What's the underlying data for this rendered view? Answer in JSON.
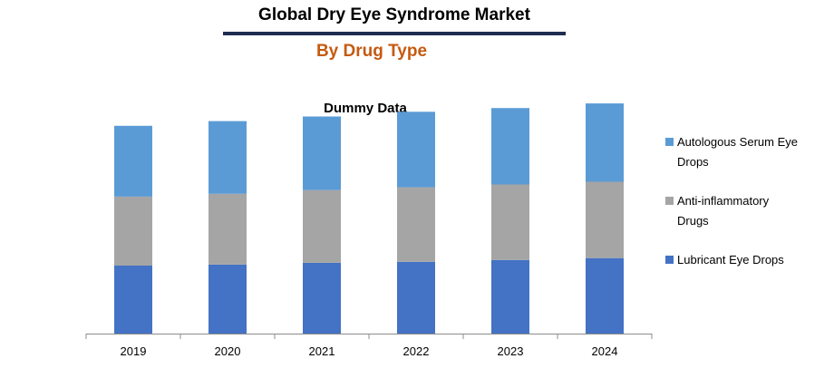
{
  "header": {
    "title": "Global Dry Eye Syndrome Market",
    "subtitle": "By Drug Type"
  },
  "chart_data": {
    "type": "bar",
    "stacked": true,
    "title": "Dummy Data",
    "xlabel": "",
    "ylabel": "",
    "categories": [
      "2019",
      "2020",
      "2021",
      "2022",
      "2023",
      "2024"
    ],
    "series": [
      {
        "name": "Lubricant Eye Drops",
        "color": "#4472c4",
        "values": [
          73,
          74,
          76,
          77,
          79,
          81
        ]
      },
      {
        "name": "Anti-inflammatory Drugs",
        "color": "#a5a5a5",
        "values": [
          74,
          76,
          78,
          80,
          81,
          82
        ]
      },
      {
        "name": "Autologous Serum Eye Drops",
        "color": "#5b9bd5",
        "values": [
          76,
          78,
          79,
          81,
          82,
          84
        ]
      }
    ],
    "ylim": [
      0,
      250
    ],
    "grid": false,
    "legend": "right"
  }
}
